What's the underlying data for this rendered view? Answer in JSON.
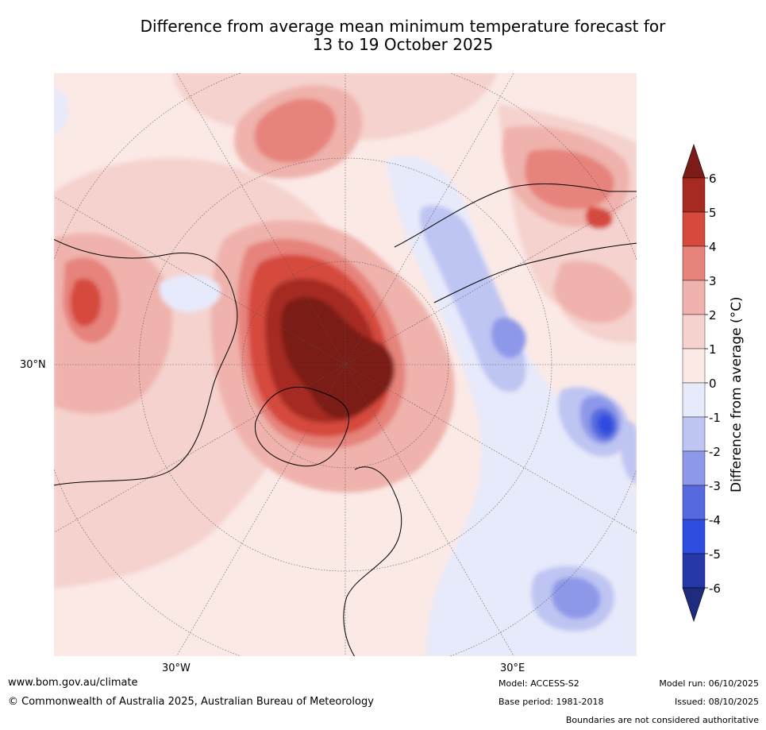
{
  "title": {
    "line1": "Difference from average mean minimum temperature forecast for",
    "line2": "13 to 19 October 2025"
  },
  "map": {
    "lat_label": "30°N",
    "lon_labels": [
      "30°W",
      "30°E"
    ],
    "ocean_colour": "#fbe6e2"
  },
  "legend": {
    "title": "Difference from average (°C)",
    "tick_labels": [
      "6",
      "5",
      "4",
      "3",
      "2",
      "1",
      "0",
      "-1",
      "-2",
      "-3",
      "-4",
      "-5",
      "-6"
    ],
    "bins": [
      {
        "range": ">6",
        "color": "#7b1c19"
      },
      {
        "range": "5 to 6",
        "color": "#a62a22"
      },
      {
        "range": "4 to 5",
        "color": "#d64a3e"
      },
      {
        "range": "3 to 4",
        "color": "#e6837b"
      },
      {
        "range": "2 to 3",
        "color": "#efb2ac"
      },
      {
        "range": "1 to 2",
        "color": "#f5d2ce"
      },
      {
        "range": "0 to 1",
        "color": "#fbe9e6"
      },
      {
        "range": "-1 to 0",
        "color": "#e7eafb"
      },
      {
        "range": "-2 to -1",
        "color": "#bfc5f2"
      },
      {
        "range": "-3 to -2",
        "color": "#8d98e9"
      },
      {
        "range": "-4 to -3",
        "color": "#5769df"
      },
      {
        "range": "-5 to -4",
        "color": "#2f4de0"
      },
      {
        "range": "-6 to -5",
        "color": "#2638a8"
      },
      {
        "range": "<-6",
        "color": "#1f2b7f"
      }
    ]
  },
  "footer": {
    "website": "www.bom.gov.au/climate",
    "copyright": "© Commonwealth of Australia 2025, Australian Bureau of Meteorology",
    "model": "Model: ACCESS-S2",
    "base_period": "Base period: 1981-2018",
    "model_run": "Model run: 06/10/2025",
    "issued": "Issued: 08/10/2025",
    "disclaimer": "Boundaries are not considered authoritative"
  }
}
